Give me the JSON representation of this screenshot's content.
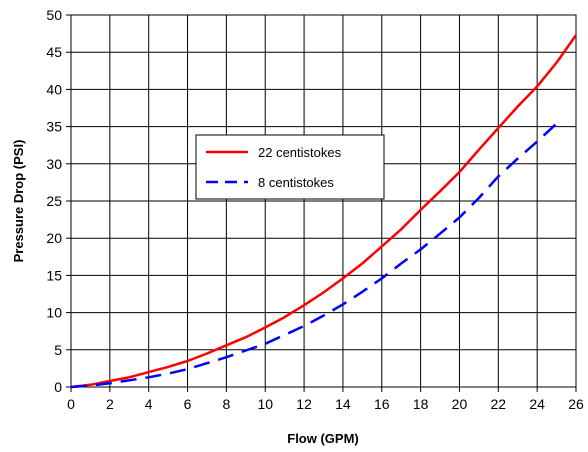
{
  "chart_data": {
    "type": "line",
    "title": "",
    "xlabel": "Flow (GPM)",
    "ylabel": "Pressure Drop (PSI)",
    "xlim": [
      0,
      26
    ],
    "ylim": [
      0,
      50
    ],
    "x_ticks": [
      "0",
      "2",
      "4",
      "6",
      "8",
      "10",
      "12",
      "14",
      "16",
      "18",
      "20",
      "22",
      "24",
      "26"
    ],
    "y_ticks": [
      "0",
      "5",
      "10",
      "15",
      "20",
      "25",
      "30",
      "35",
      "40",
      "45",
      "50"
    ],
    "grid": true,
    "legend_position": "center-left",
    "series": [
      {
        "name": "22 centistokes",
        "color": "#ff0000",
        "style": "solid",
        "x": [
          0,
          1,
          2,
          3,
          4,
          5,
          6,
          7,
          8,
          9,
          10,
          11,
          12,
          13,
          14,
          15,
          16,
          17,
          18,
          19,
          20,
          21,
          22,
          23,
          24,
          25,
          26
        ],
        "y": [
          0,
          0.3,
          0.8,
          1.3,
          2.0,
          2.7,
          3.5,
          4.5,
          5.6,
          6.7,
          8.0,
          9.4,
          11.0,
          12.7,
          14.6,
          16.6,
          18.9,
          21.2,
          23.8,
          26.3,
          28.9,
          31.9,
          34.8,
          37.7,
          40.4,
          43.6,
          47.3
        ]
      },
      {
        "name": "8 centistokes",
        "color": "#0000ff",
        "style": "dashed",
        "x": [
          0,
          1,
          2,
          3,
          4,
          5,
          6,
          7,
          8,
          9,
          10,
          11,
          12,
          13,
          14,
          15,
          16,
          17,
          18,
          19,
          20,
          21,
          22,
          23,
          24,
          25
        ],
        "y": [
          0,
          0.2,
          0.5,
          0.9,
          1.3,
          1.8,
          2.4,
          3.2,
          4.0,
          4.9,
          5.8,
          7.0,
          8.2,
          9.6,
          11.1,
          12.8,
          14.6,
          16.6,
          18.5,
          20.6,
          22.8,
          25.4,
          28.3,
          30.7,
          33.0,
          35.4
        ]
      }
    ]
  }
}
